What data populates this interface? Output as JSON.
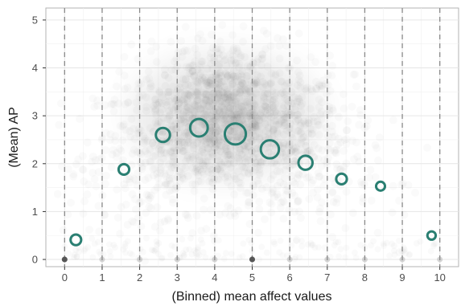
{
  "chart_data": {
    "type": "scatter",
    "title": "",
    "xlabel": "(Binned) mean affect values",
    "ylabel": "(Mean) AP",
    "xlim": [
      -0.5,
      10.5
    ],
    "ylim": [
      -0.15,
      5.25
    ],
    "x_ticks": [
      "0",
      "1",
      "2",
      "3",
      "4",
      "5",
      "6",
      "7",
      "8",
      "9",
      "10"
    ],
    "y_ticks": [
      "0",
      "1",
      "2",
      "3",
      "4",
      "5"
    ],
    "grid": true,
    "bin_boundaries": [
      0,
      1,
      2,
      3,
      4,
      5,
      6,
      7,
      8,
      9,
      10
    ],
    "binned_means": {
      "name": "",
      "color": "#2a7f72",
      "points": [
        {
          "x": 0.3,
          "y": 0.41,
          "size": 1.0
        },
        {
          "x": 1.58,
          "y": 1.88,
          "size": 1.0
        },
        {
          "x": 2.62,
          "y": 2.6,
          "size": 1.6
        },
        {
          "x": 3.58,
          "y": 2.75,
          "size": 2.2
        },
        {
          "x": 4.55,
          "y": 2.62,
          "size": 2.8
        },
        {
          "x": 5.47,
          "y": 2.3,
          "size": 2.3
        },
        {
          "x": 6.42,
          "y": 2.02,
          "size": 1.6
        },
        {
          "x": 7.38,
          "y": 1.68,
          "size": 1.0
        },
        {
          "x": 8.42,
          "y": 1.53,
          "size": 0.7
        },
        {
          "x": 9.78,
          "y": 0.5,
          "size": 0.6
        }
      ]
    },
    "zero_points": {
      "color": "#555555",
      "points": [
        {
          "x": 0.0,
          "y": 0.0
        },
        {
          "x": 5.0,
          "y": 0.0
        }
      ]
    },
    "background_cloud": {
      "description_color": "#000000",
      "center_x": 4.3,
      "center_y": 3.0
    }
  }
}
